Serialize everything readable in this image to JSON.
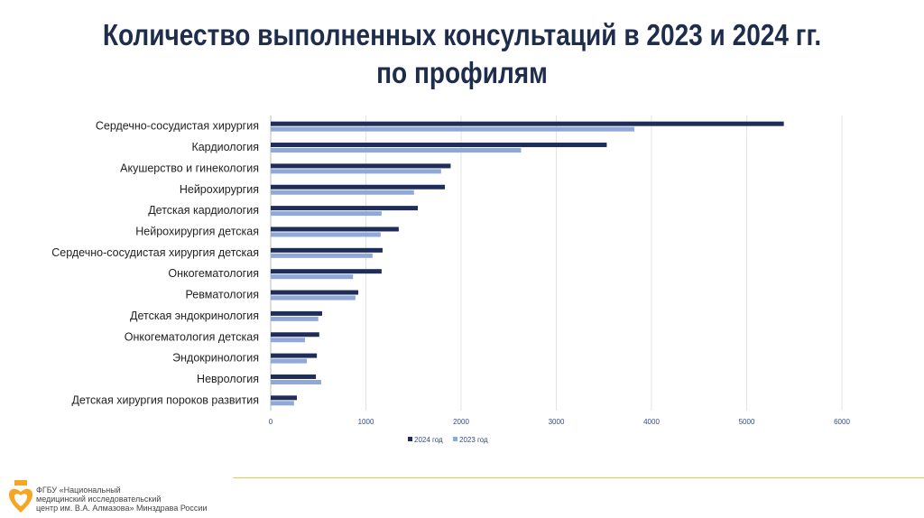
{
  "title_line1": "Количество выполненных консультаций в 2023 и 2024 гг.",
  "title_line2": "по профилям",
  "chart_data": {
    "type": "bar",
    "orientation": "horizontal",
    "categories": [
      "Сердечно-сосудистая хирургия",
      "Кардиология",
      "Акушерство и гинекология",
      "Нейрохирургия",
      "Детская кардиология",
      "Нейрохирургия детская",
      "Сердечно-сосудистая хирургия детская",
      "Онкогематология",
      "Ревматология",
      "Детская эндокринология",
      "Онкогематология детская",
      "Эндокринология",
      "Неврология",
      "Детская хирургия пороков развития"
    ],
    "series": [
      {
        "name": "2024 год",
        "color": "#1f2d5a",
        "values": [
          5390,
          3530,
          1890,
          1830,
          1545,
          1345,
          1175,
          1165,
          920,
          540,
          510,
          485,
          475,
          275
        ]
      },
      {
        "name": "2023 год",
        "color": "#8fa8d8",
        "values": [
          3820,
          2630,
          1790,
          1505,
          1165,
          1155,
          1070,
          865,
          890,
          500,
          360,
          380,
          530,
          245
        ]
      }
    ],
    "xlim": [
      0,
      6000
    ],
    "xticks": [
      "0",
      "1000",
      "2000",
      "3000",
      "4000",
      "5000",
      "6000"
    ],
    "grid": true,
    "legend": "bottom"
  },
  "footer": {
    "org_line1": "ФГБУ «Национальный",
    "org_line2": "медицинский исследовательский",
    "org_line3": "центр им. В.А. Алмазова» Минздрава России",
    "accent": "#f2c14e"
  }
}
